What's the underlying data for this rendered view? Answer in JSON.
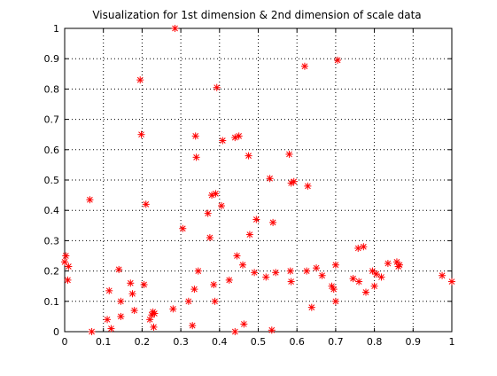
{
  "chart_data": {
    "type": "scatter",
    "title": "Visualization for 1st dimension & 2nd dimension of scale data",
    "xlabel": "",
    "ylabel": "",
    "xlim": [
      0,
      1
    ],
    "ylim": [
      0,
      1
    ],
    "xticks": [
      "0",
      "0.1",
      "0.2",
      "0.3",
      "0.4",
      "0.5",
      "0.6",
      "0.7",
      "0.8",
      "0.9",
      "1"
    ],
    "yticks": [
      "0",
      "0.1",
      "0.2",
      "0.3",
      "0.4",
      "0.5",
      "0.6",
      "0.7",
      "0.8",
      "0.9",
      "1"
    ],
    "grid": true,
    "grid_style": "dotted",
    "marker": "*",
    "marker_color": "#ff0000",
    "points": [
      [
        0.0,
        0.23
      ],
      [
        0.003,
        0.25
      ],
      [
        0.01,
        0.215
      ],
      [
        0.008,
        0.17
      ],
      [
        0.065,
        0.435
      ],
      [
        0.07,
        0.0
      ],
      [
        0.11,
        0.04
      ],
      [
        0.115,
        0.135
      ],
      [
        0.12,
        0.01
      ],
      [
        0.14,
        0.205
      ],
      [
        0.145,
        0.1
      ],
      [
        0.145,
        0.05
      ],
      [
        0.17,
        0.16
      ],
      [
        0.175,
        0.125
      ],
      [
        0.18,
        0.07
      ],
      [
        0.195,
        0.83
      ],
      [
        0.198,
        0.65
      ],
      [
        0.205,
        0.155
      ],
      [
        0.21,
        0.42
      ],
      [
        0.22,
        0.04
      ],
      [
        0.225,
        0.055
      ],
      [
        0.228,
        0.065
      ],
      [
        0.23,
        0.015
      ],
      [
        0.232,
        0.06
      ],
      [
        0.28,
        0.075
      ],
      [
        0.285,
        1.0
      ],
      [
        0.305,
        0.34
      ],
      [
        0.32,
        0.1
      ],
      [
        0.33,
        0.02
      ],
      [
        0.335,
        0.14
      ],
      [
        0.338,
        0.645
      ],
      [
        0.34,
        0.575
      ],
      [
        0.345,
        0.2
      ],
      [
        0.37,
        0.39
      ],
      [
        0.375,
        0.31
      ],
      [
        0.38,
        0.45
      ],
      [
        0.385,
        0.155
      ],
      [
        0.388,
        0.1
      ],
      [
        0.39,
        0.455
      ],
      [
        0.393,
        0.805
      ],
      [
        0.405,
        0.415
      ],
      [
        0.408,
        0.63
      ],
      [
        0.425,
        0.17
      ],
      [
        0.44,
        0.64
      ],
      [
        0.44,
        0.0
      ],
      [
        0.445,
        0.25
      ],
      [
        0.45,
        0.645
      ],
      [
        0.46,
        0.22
      ],
      [
        0.463,
        0.025
      ],
      [
        0.475,
        0.58
      ],
      [
        0.478,
        0.32
      ],
      [
        0.49,
        0.195
      ],
      [
        0.495,
        0.37
      ],
      [
        0.52,
        0.18
      ],
      [
        0.53,
        0.505
      ],
      [
        0.535,
        0.005
      ],
      [
        0.538,
        0.36
      ],
      [
        0.545,
        0.195
      ],
      [
        0.58,
        0.585
      ],
      [
        0.583,
        0.2
      ],
      [
        0.585,
        0.165
      ],
      [
        0.585,
        0.49
      ],
      [
        0.592,
        0.495
      ],
      [
        0.62,
        0.875
      ],
      [
        0.625,
        0.2
      ],
      [
        0.628,
        0.48
      ],
      [
        0.638,
        0.08
      ],
      [
        0.65,
        0.21
      ],
      [
        0.665,
        0.185
      ],
      [
        0.69,
        0.15
      ],
      [
        0.695,
        0.14
      ],
      [
        0.7,
        0.1
      ],
      [
        0.7,
        0.22
      ],
      [
        0.705,
        0.895
      ],
      [
        0.745,
        0.175
      ],
      [
        0.758,
        0.275
      ],
      [
        0.76,
        0.165
      ],
      [
        0.772,
        0.28
      ],
      [
        0.778,
        0.13
      ],
      [
        0.795,
        0.2
      ],
      [
        0.8,
        0.15
      ],
      [
        0.805,
        0.19
      ],
      [
        0.818,
        0.18
      ],
      [
        0.835,
        0.225
      ],
      [
        0.858,
        0.23
      ],
      [
        0.862,
        0.215
      ],
      [
        0.865,
        0.22
      ],
      [
        0.975,
        0.185
      ],
      [
        1.0,
        0.165
      ]
    ]
  }
}
